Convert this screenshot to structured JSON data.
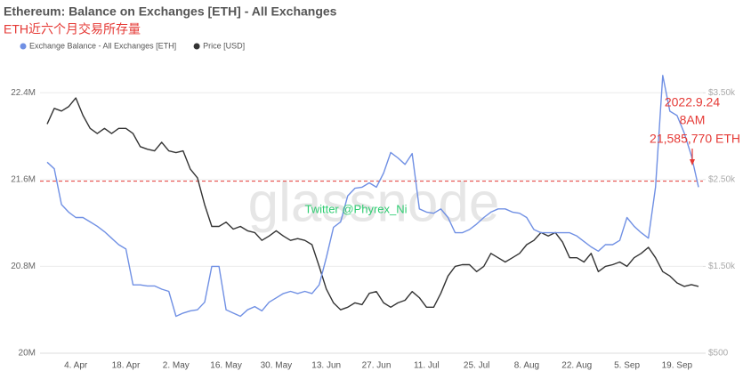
{
  "chart_data": {
    "type": "line",
    "title": "Ethereum: Balance on Exchanges [ETH] - All Exchanges",
    "subtitle": "ETH近六个月交易所存量",
    "watermark": "glassnode",
    "credit": "Twitter @Phyrex_Ni",
    "x": [
      "27. Mar",
      "29. Mar",
      "31. Mar",
      "2. Apr",
      "4. Apr",
      "6. Apr",
      "8. Apr",
      "10. Apr",
      "12. Apr",
      "14. Apr",
      "16. Apr",
      "18. Apr",
      "20. Apr",
      "22. Apr",
      "24. Apr",
      "26. Apr",
      "28. Apr",
      "30. Apr",
      "2. May",
      "4. May",
      "6. May",
      "8. May",
      "10. May",
      "12. May",
      "14. May",
      "16. May",
      "18. May",
      "20. May",
      "22. May",
      "24. May",
      "26. May",
      "28. May",
      "30. May",
      "1. Jun",
      "3. Jun",
      "5. Jun",
      "7. Jun",
      "9. Jun",
      "11. Jun",
      "13. Jun",
      "15. Jun",
      "17. Jun",
      "19. Jun",
      "21. Jun",
      "23. Jun",
      "25. Jun",
      "27. Jun",
      "29. Jun",
      "1. Jul",
      "3. Jul",
      "5. Jul",
      "7. Jul",
      "9. Jul",
      "11. Jul",
      "13. Jul",
      "15. Jul",
      "17. Jul",
      "19. Jul",
      "21. Jul",
      "23. Jul",
      "25. Jul",
      "27. Jul",
      "29. Jul",
      "31. Jul",
      "2. Aug",
      "4. Aug",
      "6. Aug",
      "8. Aug",
      "10. Aug",
      "12. Aug",
      "14. Aug",
      "16. Aug",
      "18. Aug",
      "20. Aug",
      "22. Aug",
      "24. Aug",
      "26. Aug",
      "28. Aug",
      "30. Aug",
      "1. Sep",
      "3. Sep",
      "5. Sep",
      "7. Sep",
      "9. Sep",
      "11. Sep",
      "13. Sep",
      "15. Sep",
      "17. Sep",
      "19. Sep",
      "21. Sep",
      "23. Sep",
      "25. Sep"
    ],
    "xticks": [
      "4. Apr",
      "18. Apr",
      "2. May",
      "16. May",
      "30. May",
      "13. Jun",
      "27. Jun",
      "11. Jul",
      "25. Jul",
      "8. Aug",
      "22. Aug",
      "5. Sep",
      "19. Sep"
    ],
    "series": [
      {
        "name": "Exchange Balance - All Exchanges [ETH]",
        "color": "#7090e4",
        "axis": "y",
        "values": [
          21760000,
          21700000,
          21370000,
          21300000,
          21250000,
          21250000,
          21210000,
          21170000,
          21120000,
          21060000,
          21000000,
          20960000,
          20630000,
          20630000,
          20620000,
          20620000,
          20590000,
          20570000,
          20340000,
          20370000,
          20390000,
          20400000,
          20470000,
          20800000,
          20800000,
          20400000,
          20370000,
          20340000,
          20400000,
          20430000,
          20390000,
          20470000,
          20510000,
          20550000,
          20570000,
          20550000,
          20570000,
          20550000,
          20630000,
          20880000,
          21160000,
          21210000,
          21450000,
          21520000,
          21530000,
          21570000,
          21530000,
          21660000,
          21850000,
          21800000,
          21740000,
          21840000,
          21330000,
          21300000,
          21290000,
          21330000,
          21250000,
          21110000,
          21110000,
          21140000,
          21190000,
          21250000,
          21300000,
          21330000,
          21330000,
          21300000,
          21290000,
          21250000,
          21140000,
          21110000,
          21110000,
          21110000,
          21110000,
          21110000,
          21080000,
          21030000,
          20980000,
          20940000,
          21000000,
          21000000,
          21040000,
          21250000,
          21170000,
          21110000,
          21060000,
          21530000,
          22560000,
          22230000,
          22190000,
          22030000,
          21820000,
          21530000
        ]
      },
      {
        "name": "Price [USD]",
        "color": "#333333",
        "axis": "y2",
        "values": [
          3140,
          3320,
          3290,
          3340,
          3440,
          3240,
          3090,
          3030,
          3090,
          3030,
          3090,
          3090,
          3030,
          2880,
          2850,
          2830,
          2930,
          2830,
          2810,
          2830,
          2620,
          2520,
          2210,
          1960,
          1960,
          2010,
          1930,
          1960,
          1910,
          1890,
          1800,
          1850,
          1910,
          1850,
          1800,
          1820,
          1800,
          1750,
          1500,
          1240,
          1080,
          1000,
          1030,
          1080,
          1060,
          1190,
          1210,
          1080,
          1030,
          1080,
          1110,
          1210,
          1140,
          1030,
          1030,
          1190,
          1390,
          1500,
          1520,
          1520,
          1440,
          1500,
          1650,
          1600,
          1550,
          1600,
          1650,
          1750,
          1800,
          1890,
          1850,
          1890,
          1780,
          1600,
          1600,
          1550,
          1650,
          1440,
          1500,
          1520,
          1550,
          1500,
          1600,
          1650,
          1720,
          1600,
          1440,
          1390,
          1310,
          1270,
          1290,
          1270
        ]
      }
    ],
    "ylim": [
      20000000,
      22640000
    ],
    "yticks": [
      {
        "value": 20000000,
        "label": "20M"
      },
      {
        "value": 20800000,
        "label": "20.8M"
      },
      {
        "value": 21600000,
        "label": "21.6M"
      },
      {
        "value": 22400000,
        "label": "22.4M"
      }
    ],
    "y2lim": [
      500,
      3800
    ],
    "y2ticks": [
      {
        "value": 500,
        "label": "$500"
      },
      {
        "value": 1500,
        "label": "$1.50k"
      },
      {
        "value": 2500,
        "label": "$2.50k"
      },
      {
        "value": 3500,
        "label": "$3.50k"
      }
    ],
    "grid": true,
    "annotation": [
      "2022.9.24",
      "8AM"
    ],
    "reference": {
      "value": 21585770,
      "label": "21,585,770 ETH",
      "color": "#e53935"
    }
  }
}
